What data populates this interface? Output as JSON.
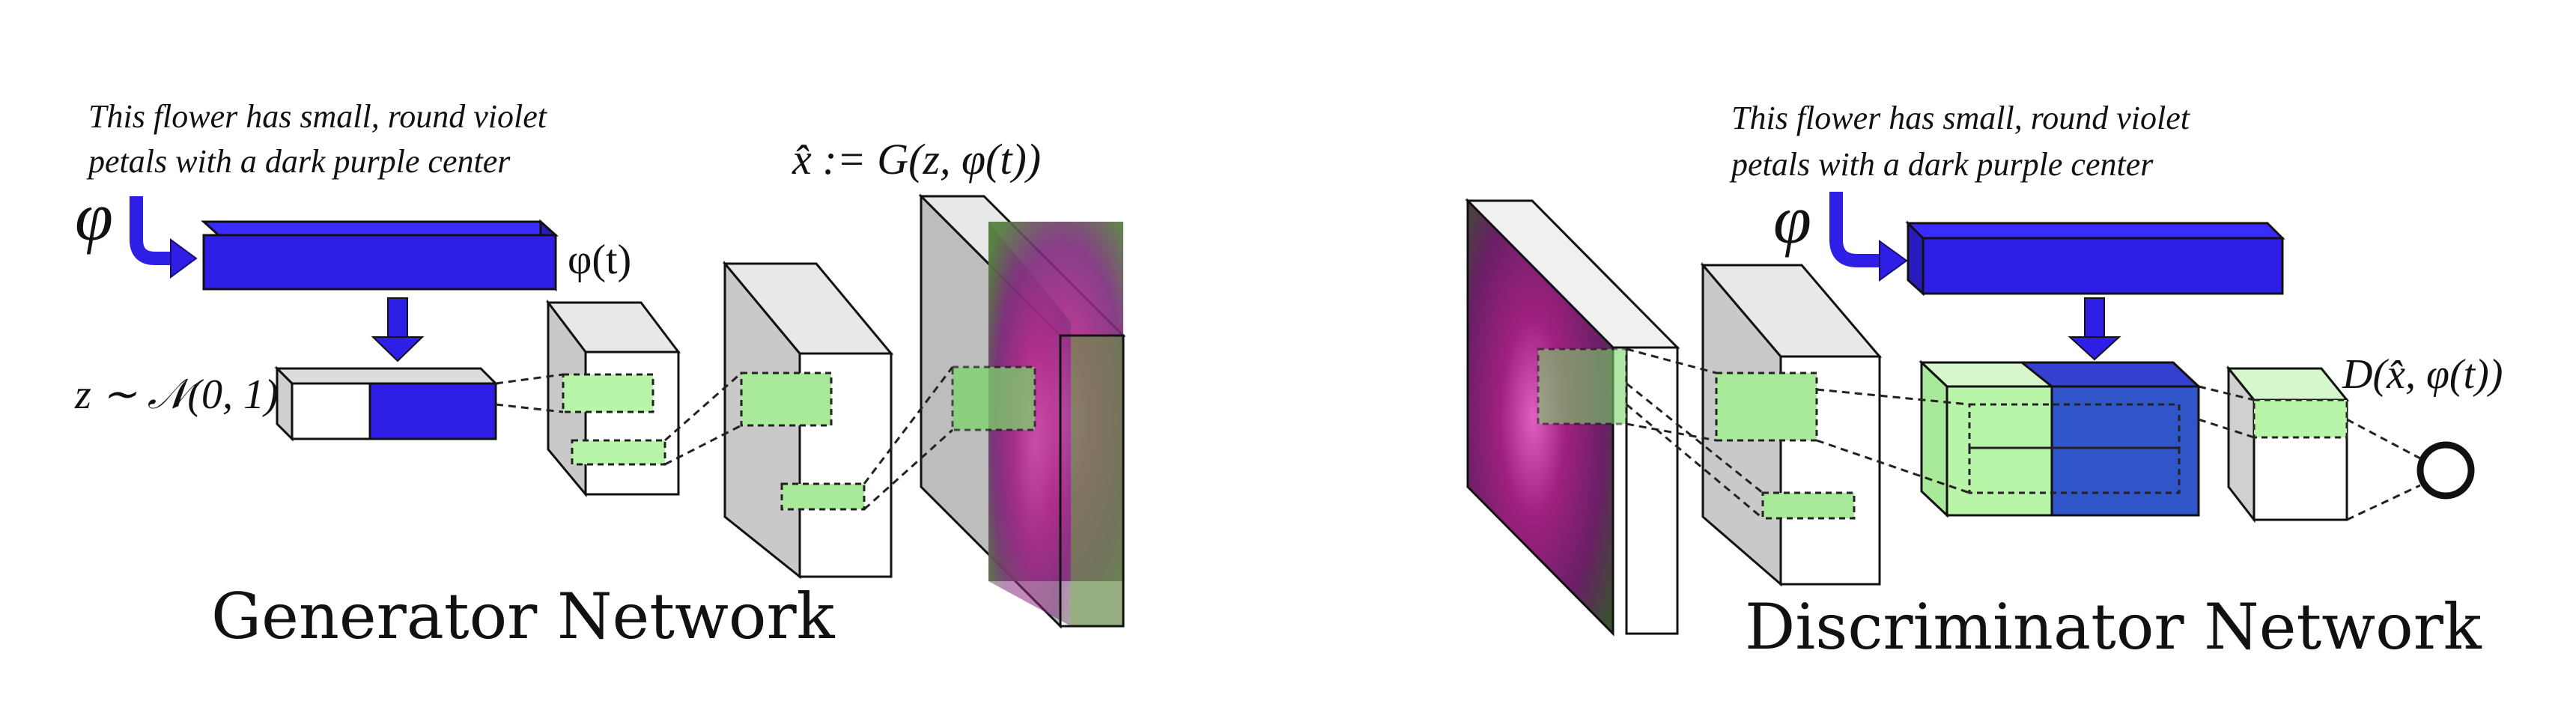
{
  "generator": {
    "caption_line1": "This flower has small, round violet",
    "caption_line2": "petals with a dark purple center",
    "phi_symbol": "φ",
    "phi_t_label": "φ(t)",
    "z_label": "z ∼ 𝒩(0, 1)",
    "output_label": "x̂ := G(z, φ(t))",
    "title": "Generator Network"
  },
  "discriminator": {
    "caption_line1": "This flower has small, round violet",
    "caption_line2": "petals with a dark purple center",
    "phi_symbol": "φ",
    "output_label": "D(x̂, φ(t))",
    "title": "Discriminator Network"
  },
  "colors": {
    "embedding_blue": "#2f1fe6",
    "feature_green": "#b9f5a8",
    "image_magenta": "#b0278a",
    "box_gray": "#cfcfcf"
  },
  "icons": [
    "arrow-down-icon",
    "curved-arrow-icon",
    "output-node-circle"
  ]
}
